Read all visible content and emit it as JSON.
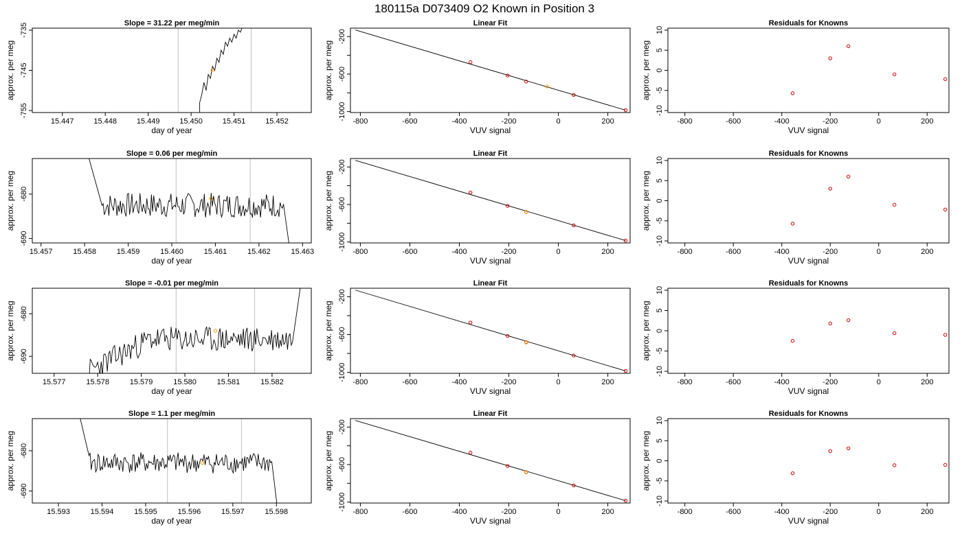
{
  "figure_title": "180115a      D073409   O2 Known in Position  3",
  "chart_data": [
    {
      "type": "line",
      "row": 0,
      "title": "Slope =  31.22  per meg/min",
      "xlabel": "day of year",
      "ylabel": "approx. per meg",
      "xlim": [
        15.4463,
        15.4528
      ],
      "ylim": [
        -755.5,
        -734.5
      ],
      "xticks": [
        "15.447",
        "15.448",
        "15.449",
        "15.450",
        "15.451",
        "15.452"
      ],
      "yticks": [
        "-735",
        "-745",
        "-755"
      ],
      "vlines": [
        15.4497,
        15.4514
      ],
      "marker": {
        "x": 15.4505,
        "y": -745
      },
      "series": {
        "x": [
          15.4502,
          15.4502,
          15.45025,
          15.4503,
          15.45035,
          15.4504,
          15.45045,
          15.4505,
          15.45055,
          15.4506,
          15.45065,
          15.4507,
          15.45075,
          15.4508,
          15.45085,
          15.4509,
          15.45095,
          15.451,
          15.45105,
          15.4511,
          15.45115,
          15.4512
        ],
        "y": [
          -756,
          -753,
          -751,
          -748,
          -750,
          -746,
          -747,
          -744,
          -745,
          -742,
          -743,
          -740,
          -741,
          -738,
          -739,
          -737,
          -738,
          -736,
          -737,
          -735,
          -735.5,
          -734
        ]
      }
    },
    {
      "type": "line",
      "row": 1,
      "title": "Slope =  0.06  per meg/min",
      "xlabel": "day of year",
      "ylabel": "approx. per meg",
      "xlim": [
        15.4568,
        15.4632
      ],
      "ylim": [
        -691,
        -672
      ],
      "xticks": [
        "15.457",
        "15.458",
        "15.459",
        "15.460",
        "15.461",
        "15.462",
        "15.463"
      ],
      "yticks": [
        "-680",
        "-690"
      ],
      "vlines": [
        15.4601,
        15.4618
      ],
      "marker": {
        "x": 15.4609,
        "y": -681
      },
      "noise": {
        "seed": 7,
        "x0": 15.4581,
        "x1": 15.46258,
        "base": -682.5,
        "amp": 2.8,
        "startY": -672,
        "startLen": 0.0003,
        "endY": -692,
        "endLen": 0.00012
      }
    },
    {
      "type": "line",
      "row": 2,
      "title": "Slope =  -0.01  per meg/min",
      "xlabel": "day of year",
      "ylabel": "approx. per meg",
      "xlim": [
        15.5765,
        15.5829
      ],
      "ylim": [
        -694,
        -674
      ],
      "xticks": [
        "15.577",
        "15.578",
        "15.579",
        "15.580",
        "15.581",
        "15.582"
      ],
      "yticks": [
        "-680",
        "-690"
      ],
      "vlines": [
        15.5798,
        15.5816
      ],
      "marker": {
        "x": 15.5807,
        "y": -684
      },
      "noise": {
        "seed": 23,
        "x0": 15.5777,
        "x1": 15.58248,
        "base": -686,
        "amp": 3,
        "trendFrom": -694,
        "trendUntil": 15.5792,
        "startY": -695,
        "startLen": 0.0001,
        "endY": -673,
        "endLen": 0.00018
      }
    },
    {
      "type": "line",
      "row": 3,
      "title": "Slope =  1.1  per meg/min",
      "xlabel": "day of year",
      "ylabel": "approx. per meg",
      "xlim": [
        15.5924,
        15.5988
      ],
      "ylim": [
        -693,
        -672
      ],
      "xticks": [
        "15.593",
        "15.594",
        "15.595",
        "15.596",
        "15.597",
        "15.598"
      ],
      "yticks": [
        "-680",
        "-690"
      ],
      "vlines": [
        15.5955,
        15.5972
      ],
      "marker": {
        "x": 15.5963,
        "y": -683
      },
      "noise": {
        "seed": 41,
        "x0": 15.5935,
        "x1": 15.5979,
        "base": -683,
        "amp": 2.6,
        "startY": -672,
        "startLen": 0.0002,
        "endY": -694,
        "endLen": 0.00012
      }
    },
    {
      "type": "scatter",
      "row": 0,
      "title": "Linear Fit",
      "xlabel": "VUV signal",
      "ylabel": "approx. per meg",
      "xlim": [
        -840,
        290
      ],
      "ylim": [
        -1010,
        -110
      ],
      "xticks": [
        "-800",
        "-600",
        "-400",
        "-200",
        "0",
        "200"
      ],
      "yticks": [
        "-200",
        "-600",
        "-1000"
      ],
      "yminorticks": [
        -400,
        -800
      ],
      "fit": {
        "x": [
          -820,
          272
        ],
        "y": [
          -130,
          -985
        ]
      },
      "points": {
        "x": [
          -355,
          -205,
          -130,
          62,
          272
        ],
        "y": [
          -473,
          -615,
          -680,
          -822,
          -985
        ]
      },
      "unknown": {
        "x": -45,
        "y": -732
      }
    },
    {
      "type": "scatter",
      "row": 1,
      "title": "Linear Fit",
      "xlabel": "VUV signal",
      "ylabel": "approx. per meg",
      "xlim": [
        -840,
        290
      ],
      "ylim": [
        -1010,
        -110
      ],
      "xticks": [
        "-800",
        "-600",
        "-400",
        "-200",
        "0",
        "200"
      ],
      "yticks": [
        "-200",
        "-600",
        "-1000"
      ],
      "yminorticks": [
        -400,
        -800
      ],
      "fit": {
        "x": [
          -820,
          272
        ],
        "y": [
          -130,
          -985
        ]
      },
      "points": {
        "x": [
          -355,
          -205,
          -130,
          62,
          272
        ],
        "y": [
          -473,
          -615,
          -680,
          -822,
          -985
        ]
      },
      "unknown": {
        "x": -130,
        "y": -680
      }
    },
    {
      "type": "scatter",
      "row": 2,
      "title": "Linear Fit",
      "xlabel": "VUV signal",
      "ylabel": "approx. per meg",
      "xlim": [
        -840,
        290
      ],
      "ylim": [
        -1010,
        -110
      ],
      "xticks": [
        "-800",
        "-600",
        "-400",
        "-200",
        "0",
        "200"
      ],
      "yticks": [
        "-200",
        "-600",
        "-1000"
      ],
      "yminorticks": [
        -400,
        -800
      ],
      "fit": {
        "x": [
          -820,
          272
        ],
        "y": [
          -130,
          -985
        ]
      },
      "points": {
        "x": [
          -355,
          -205,
          -130,
          62,
          272
        ],
        "y": [
          -473,
          -615,
          -680,
          -822,
          -985
        ]
      },
      "unknown": {
        "x": -130,
        "y": -684
      }
    },
    {
      "type": "scatter",
      "row": 3,
      "title": "Linear Fit",
      "xlabel": "VUV signal",
      "ylabel": "approx. per meg",
      "xlim": [
        -840,
        290
      ],
      "ylim": [
        -1010,
        -110
      ],
      "xticks": [
        "-800",
        "-600",
        "-400",
        "-200",
        "0",
        "200"
      ],
      "yticks": [
        "-200",
        "-600",
        "-1000"
      ],
      "yminorticks": [
        -400,
        -800
      ],
      "fit": {
        "x": [
          -820,
          272
        ],
        "y": [
          -130,
          -985
        ]
      },
      "points": {
        "x": [
          -355,
          -205,
          -130,
          62,
          272
        ],
        "y": [
          -473,
          -615,
          -680,
          -822,
          -985
        ]
      },
      "unknown": {
        "x": -130,
        "y": -683
      }
    },
    {
      "type": "scatter",
      "row": 0,
      "title": "Residuals for Knowns",
      "xlabel": "VUV signal",
      "ylabel": "approx. per meg",
      "xlim": [
        -870,
        290
      ],
      "ylim": [
        -10.5,
        10.5
      ],
      "xticks": [
        "-800",
        "-600",
        "-400",
        "-200",
        "0",
        "200"
      ],
      "yticks": [
        "-10",
        "-5",
        "0",
        "5",
        "10"
      ],
      "points": {
        "x": [
          -355,
          -200,
          -125,
          65,
          275
        ],
        "y": [
          -5.7,
          3,
          6,
          -1,
          -2.2
        ]
      }
    },
    {
      "type": "scatter",
      "row": 1,
      "title": "Residuals for Knowns",
      "xlabel": "VUV signal",
      "ylabel": "approx. per meg",
      "xlim": [
        -870,
        290
      ],
      "ylim": [
        -10.5,
        10.5
      ],
      "xticks": [
        "-800",
        "-600",
        "-400",
        "-200",
        "0",
        "200"
      ],
      "yticks": [
        "-10",
        "-5",
        "0",
        "5",
        "10"
      ],
      "points": {
        "x": [
          -355,
          -200,
          -125,
          65,
          275
        ],
        "y": [
          -5.7,
          3,
          6,
          -1,
          -2.2
        ]
      }
    },
    {
      "type": "scatter",
      "row": 2,
      "title": "Residuals for Knowns",
      "xlabel": "VUV signal",
      "ylabel": "approx. per meg",
      "xlim": [
        -870,
        290
      ],
      "ylim": [
        -10.5,
        10.5
      ],
      "xticks": [
        "-800",
        "-600",
        "-400",
        "-200",
        "0",
        "200"
      ],
      "yticks": [
        "-10",
        "-5",
        "0",
        "5",
        "10"
      ],
      "points": {
        "x": [
          -355,
          -200,
          -125,
          65,
          275
        ],
        "y": [
          -2.5,
          1.8,
          2.6,
          -0.6,
          -1
        ]
      }
    },
    {
      "type": "scatter",
      "row": 3,
      "title": "Residuals for Knowns",
      "xlabel": "VUV signal",
      "ylabel": "approx. per meg",
      "xlim": [
        -870,
        290
      ],
      "ylim": [
        -10.5,
        10.5
      ],
      "xticks": [
        "-800",
        "-600",
        "-400",
        "-200",
        "0",
        "200"
      ],
      "yticks": [
        "-10",
        "-5",
        "0",
        "5",
        "10"
      ],
      "points": {
        "x": [
          -355,
          -200,
          -125,
          65,
          275
        ],
        "y": [
          -3.1,
          2.4,
          3.1,
          -1.1,
          -1
        ]
      }
    }
  ]
}
